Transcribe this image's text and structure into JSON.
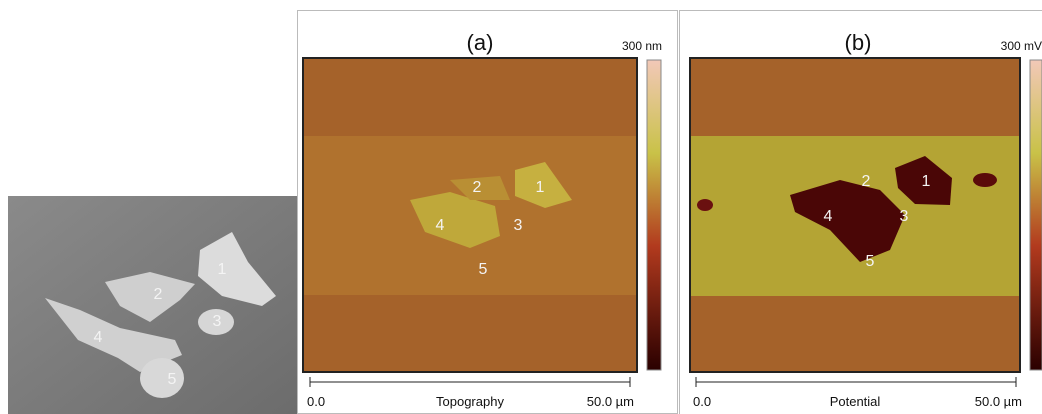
{
  "sem": {
    "labels": [
      "1",
      "2",
      "3",
      "4",
      "5"
    ]
  },
  "panels": [
    {
      "label": "(a)",
      "scale_max": "300 nm",
      "axis_start": "0.0",
      "axis_title": "Topography",
      "axis_end": "50.0 µm",
      "labels": [
        "1",
        "2",
        "3",
        "4",
        "5"
      ]
    },
    {
      "label": "(b)",
      "scale_max": "300 mV",
      "axis_start": "0.0",
      "axis_title": "Potential",
      "axis_end": "50.0 µm",
      "labels": [
        "1",
        "2",
        "3",
        "4",
        "5"
      ]
    }
  ]
}
